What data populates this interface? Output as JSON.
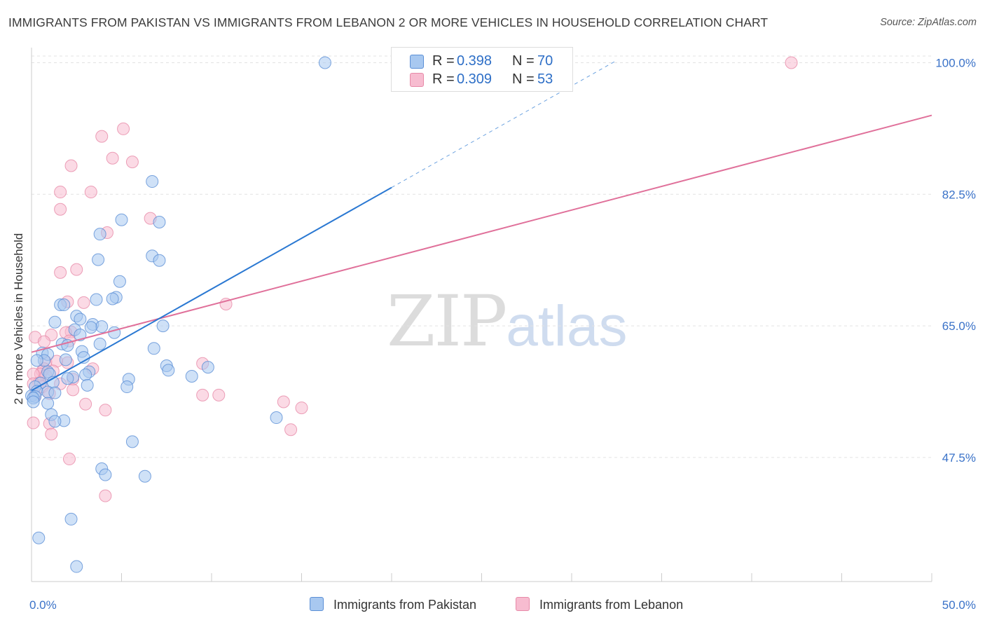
{
  "title": "IMMIGRANTS FROM PAKISTAN VS IMMIGRANTS FROM LEBANON 2 OR MORE VEHICLES IN HOUSEHOLD CORRELATION CHART",
  "source": "Source: ZipAtlas.com",
  "watermark": {
    "zip": "ZIP",
    "atlas": "atlas"
  },
  "legend": {
    "rows": [
      {
        "r_label": "R =",
        "r_value": "0.398",
        "n_label": "N =",
        "n_value": "70"
      },
      {
        "r_label": "R =",
        "r_value": "0.309",
        "n_label": "N =",
        "n_value": "53"
      }
    ]
  },
  "colors": {
    "pakistan_fill": "#a8c8f0",
    "pakistan_stroke": "#5b8fd6",
    "pakistan_line": "#2a78d2",
    "lebanon_fill": "#f7bcd0",
    "lebanon_stroke": "#e78aa8",
    "lebanon_line": "#e0709a",
    "tick_label": "#3a72c8",
    "grid": "#e3e3e3"
  },
  "chart_data": {
    "type": "scatter",
    "title": "IMMIGRANTS FROM PAKISTAN VS IMMIGRANTS FROM LEBANON 2 OR MORE VEHICLES IN HOUSEHOLD CORRELATION CHART",
    "xlabel": "",
    "ylabel": "2 or more Vehicles in Household",
    "xlim": [
      0,
      50
    ],
    "ylim": [
      31,
      102
    ],
    "x_tick_labels": [
      "0.0%",
      "50.0%"
    ],
    "y_ticks": [
      47.5,
      65.0,
      82.5,
      100.0
    ],
    "y_tick_labels": [
      "47.5%",
      "65.0%",
      "82.5%",
      "100.0%"
    ],
    "series": [
      {
        "name": "Immigrants from Pakistan",
        "R": 0.398,
        "N": 70,
        "trend": {
          "x_start": 0,
          "y_start": 56.4,
          "x_end": 20,
          "y_end": 83.4,
          "dashed_to_x": 32.5,
          "dashed_to_y": 100.3
        },
        "points": [
          [
            16.3,
            100.0
          ],
          [
            6.7,
            84.2
          ],
          [
            5.0,
            79.1
          ],
          [
            7.1,
            78.8
          ],
          [
            3.8,
            77.2
          ],
          [
            6.7,
            74.3
          ],
          [
            7.1,
            73.7
          ],
          [
            3.7,
            73.8
          ],
          [
            4.9,
            70.9
          ],
          [
            4.7,
            68.8
          ],
          [
            4.5,
            68.6
          ],
          [
            3.6,
            68.5
          ],
          [
            1.6,
            67.8
          ],
          [
            1.8,
            67.8
          ],
          [
            2.5,
            66.3
          ],
          [
            2.7,
            65.9
          ],
          [
            3.4,
            65.2
          ],
          [
            3.9,
            64.9
          ],
          [
            3.3,
            64.8
          ],
          [
            2.4,
            64.5
          ],
          [
            4.6,
            64.1
          ],
          [
            7.3,
            65.0
          ],
          [
            2.7,
            63.8
          ],
          [
            3.8,
            62.6
          ],
          [
            1.7,
            62.6
          ],
          [
            2.0,
            62.4
          ],
          [
            6.8,
            62.0
          ],
          [
            2.8,
            61.6
          ],
          [
            0.6,
            61.4
          ],
          [
            0.9,
            61.2
          ],
          [
            2.9,
            60.8
          ],
          [
            1.9,
            60.5
          ],
          [
            0.7,
            60.4
          ],
          [
            0.3,
            60.4
          ],
          [
            7.5,
            59.7
          ],
          [
            9.8,
            59.5
          ],
          [
            7.6,
            59.1
          ],
          [
            3.2,
            58.9
          ],
          [
            0.9,
            58.9
          ],
          [
            1.0,
            58.6
          ],
          [
            3.0,
            58.5
          ],
          [
            2.3,
            58.2
          ],
          [
            8.9,
            58.3
          ],
          [
            2.0,
            58.0
          ],
          [
            5.4,
            57.9
          ],
          [
            1.2,
            57.5
          ],
          [
            0.5,
            57.4
          ],
          [
            3.1,
            57.1
          ],
          [
            5.3,
            56.9
          ],
          [
            0.2,
            56.9
          ],
          [
            0.3,
            56.3
          ],
          [
            0.9,
            56.2
          ],
          [
            1.3,
            56.1
          ],
          [
            0.0,
            55.7
          ],
          [
            0.2,
            55.6
          ],
          [
            0.1,
            55.4
          ],
          [
            0.1,
            54.9
          ],
          [
            0.9,
            54.7
          ],
          [
            13.6,
            52.8
          ],
          [
            1.1,
            53.2
          ],
          [
            1.8,
            52.4
          ],
          [
            1.3,
            52.3
          ],
          [
            5.6,
            49.6
          ],
          [
            3.9,
            46.0
          ],
          [
            4.1,
            45.2
          ],
          [
            6.3,
            45.0
          ],
          [
            2.2,
            39.3
          ],
          [
            0.4,
            36.8
          ],
          [
            2.5,
            33.0
          ],
          [
            1.3,
            65.5
          ]
        ]
      },
      {
        "name": "Immigrants from Lebanon",
        "R": 0.309,
        "N": 53,
        "trend": {
          "x_start": 0,
          "y_start": 61.5,
          "x_end": 50,
          "y_end": 93.0
        },
        "points": [
          [
            42.2,
            100.0
          ],
          [
            5.1,
            91.2
          ],
          [
            3.9,
            90.2
          ],
          [
            4.5,
            87.3
          ],
          [
            5.6,
            86.8
          ],
          [
            2.2,
            86.3
          ],
          [
            1.6,
            82.8
          ],
          [
            3.3,
            82.8
          ],
          [
            1.6,
            80.5
          ],
          [
            6.6,
            79.3
          ],
          [
            4.2,
            77.4
          ],
          [
            2.5,
            72.5
          ],
          [
            1.6,
            72.1
          ],
          [
            10.8,
            67.9
          ],
          [
            2.0,
            68.2
          ],
          [
            2.9,
            68.1
          ],
          [
            2.2,
            64.2
          ],
          [
            1.9,
            64.1
          ],
          [
            1.1,
            63.8
          ],
          [
            0.2,
            63.5
          ],
          [
            2.1,
            63.0
          ],
          [
            0.7,
            62.9
          ],
          [
            9.5,
            60.0
          ],
          [
            2.0,
            60.1
          ],
          [
            0.8,
            60.2
          ],
          [
            1.4,
            60.3
          ],
          [
            3.4,
            59.3
          ],
          [
            0.7,
            59.3
          ],
          [
            1.2,
            59.0
          ],
          [
            0.6,
            59.0
          ],
          [
            0.5,
            58.6
          ],
          [
            0.1,
            58.6
          ],
          [
            0.8,
            58.4
          ],
          [
            2.3,
            57.9
          ],
          [
            0.4,
            57.4
          ],
          [
            0.1,
            57.3
          ],
          [
            1.6,
            57.3
          ],
          [
            0.6,
            56.9
          ],
          [
            2.3,
            56.5
          ],
          [
            1.0,
            56.0
          ],
          [
            0.2,
            55.8
          ],
          [
            9.5,
            55.8
          ],
          [
            10.4,
            55.8
          ],
          [
            14.0,
            54.9
          ],
          [
            3.0,
            54.6
          ],
          [
            4.1,
            53.8
          ],
          [
            15.0,
            54.1
          ],
          [
            14.4,
            51.2
          ],
          [
            0.1,
            52.1
          ],
          [
            1.0,
            52.0
          ],
          [
            1.1,
            50.6
          ],
          [
            2.1,
            47.3
          ],
          [
            4.1,
            42.4
          ]
        ]
      }
    ]
  },
  "bottom_legend": {
    "items": [
      "Immigrants from Pakistan",
      "Immigrants from Lebanon"
    ]
  }
}
